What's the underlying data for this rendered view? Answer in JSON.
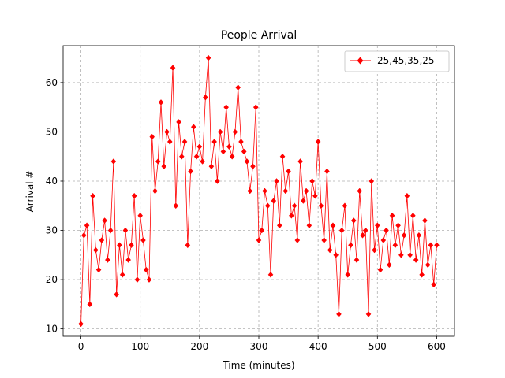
{
  "chart_data": {
    "type": "line",
    "title": "People Arrival",
    "xlabel": "Time (minutes)",
    "ylabel": "Arrival #",
    "xlim": [
      -30,
      630
    ],
    "ylim": [
      8.5,
      67.5
    ],
    "xticks": [
      0,
      100,
      200,
      300,
      400,
      500,
      600
    ],
    "yticks": [
      10,
      20,
      30,
      40,
      50,
      60
    ],
    "grid": true,
    "legend_position": "top-right",
    "color": "#ff0000",
    "marker": "diamond",
    "series": [
      {
        "name": "25,45,35,25",
        "x": [
          0,
          5,
          10,
          15,
          20,
          25,
          30,
          35,
          40,
          45,
          50,
          55,
          60,
          65,
          70,
          75,
          80,
          85,
          90,
          95,
          100,
          105,
          110,
          115,
          120,
          125,
          130,
          135,
          140,
          145,
          150,
          155,
          160,
          165,
          170,
          175,
          180,
          185,
          190,
          195,
          200,
          205,
          210,
          215,
          220,
          225,
          230,
          235,
          240,
          245,
          250,
          255,
          260,
          265,
          270,
          275,
          280,
          285,
          290,
          295,
          300,
          305,
          310,
          315,
          320,
          325,
          330,
          335,
          340,
          345,
          350,
          355,
          360,
          365,
          370,
          375,
          380,
          385,
          390,
          395,
          400,
          405,
          410,
          415,
          420,
          425,
          430,
          435,
          440,
          445,
          450,
          455,
          460,
          465,
          470,
          475,
          480,
          485,
          490,
          495,
          500,
          505,
          510,
          515,
          520,
          525,
          530,
          535,
          540,
          545,
          550,
          555,
          560,
          565,
          570,
          575,
          580,
          585,
          590,
          595,
          600
        ],
        "y": [
          11,
          29,
          31,
          15,
          37,
          26,
          22,
          28,
          32,
          24,
          30,
          44,
          17,
          27,
          21,
          30,
          24,
          27,
          37,
          20,
          33,
          28,
          22,
          20,
          49,
          38,
          44,
          56,
          43,
          50,
          48,
          63,
          35,
          52,
          45,
          48,
          27,
          42,
          51,
          45,
          47,
          44,
          57,
          65,
          43,
          48,
          40,
          50,
          46,
          55,
          47,
          45,
          50,
          59,
          48,
          46,
          44,
          38,
          43,
          55,
          28,
          30,
          38,
          35,
          21,
          36,
          40,
          31,
          45,
          38,
          42,
          33,
          35,
          28,
          44,
          36,
          38,
          31,
          40,
          37,
          48,
          35,
          28,
          42,
          26,
          31,
          25,
          13,
          30,
          35,
          21,
          27,
          32,
          24,
          38,
          29,
          30,
          13,
          40,
          26,
          31,
          22,
          28,
          30,
          23,
          33,
          27,
          31,
          25,
          29,
          37,
          25,
          33,
          24,
          29,
          21,
          32,
          23,
          27,
          19,
          27
        ]
      }
    ]
  }
}
